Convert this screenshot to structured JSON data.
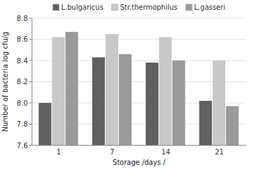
{
  "chart_data": {
    "type": "bar",
    "categories": [
      "1",
      "7",
      "14",
      "21"
    ],
    "series": [
      {
        "name": "L.bulgaricus",
        "color": "#606060",
        "values": [
          8.0,
          8.43,
          8.38,
          8.02
        ]
      },
      {
        "name": "Str.thermophilus",
        "color": "#c8c8c8",
        "values": [
          8.62,
          8.65,
          8.62,
          8.4
        ]
      },
      {
        "name": "L.gasseri",
        "color": "#9a9a9a",
        "values": [
          8.67,
          8.46,
          8.4,
          7.97
        ]
      }
    ],
    "xlabel": "Storage /days /",
    "ylabel": "Number of bacteria log cfu/g",
    "ylim": [
      7.6,
      8.8
    ],
    "yticks": [
      7.6,
      7.8,
      {
        "value": 8.0,
        "label": "8.0"
      },
      8.2,
      8.4,
      8.6,
      8.8
    ],
    "grid": true,
    "legend": "top"
  }
}
